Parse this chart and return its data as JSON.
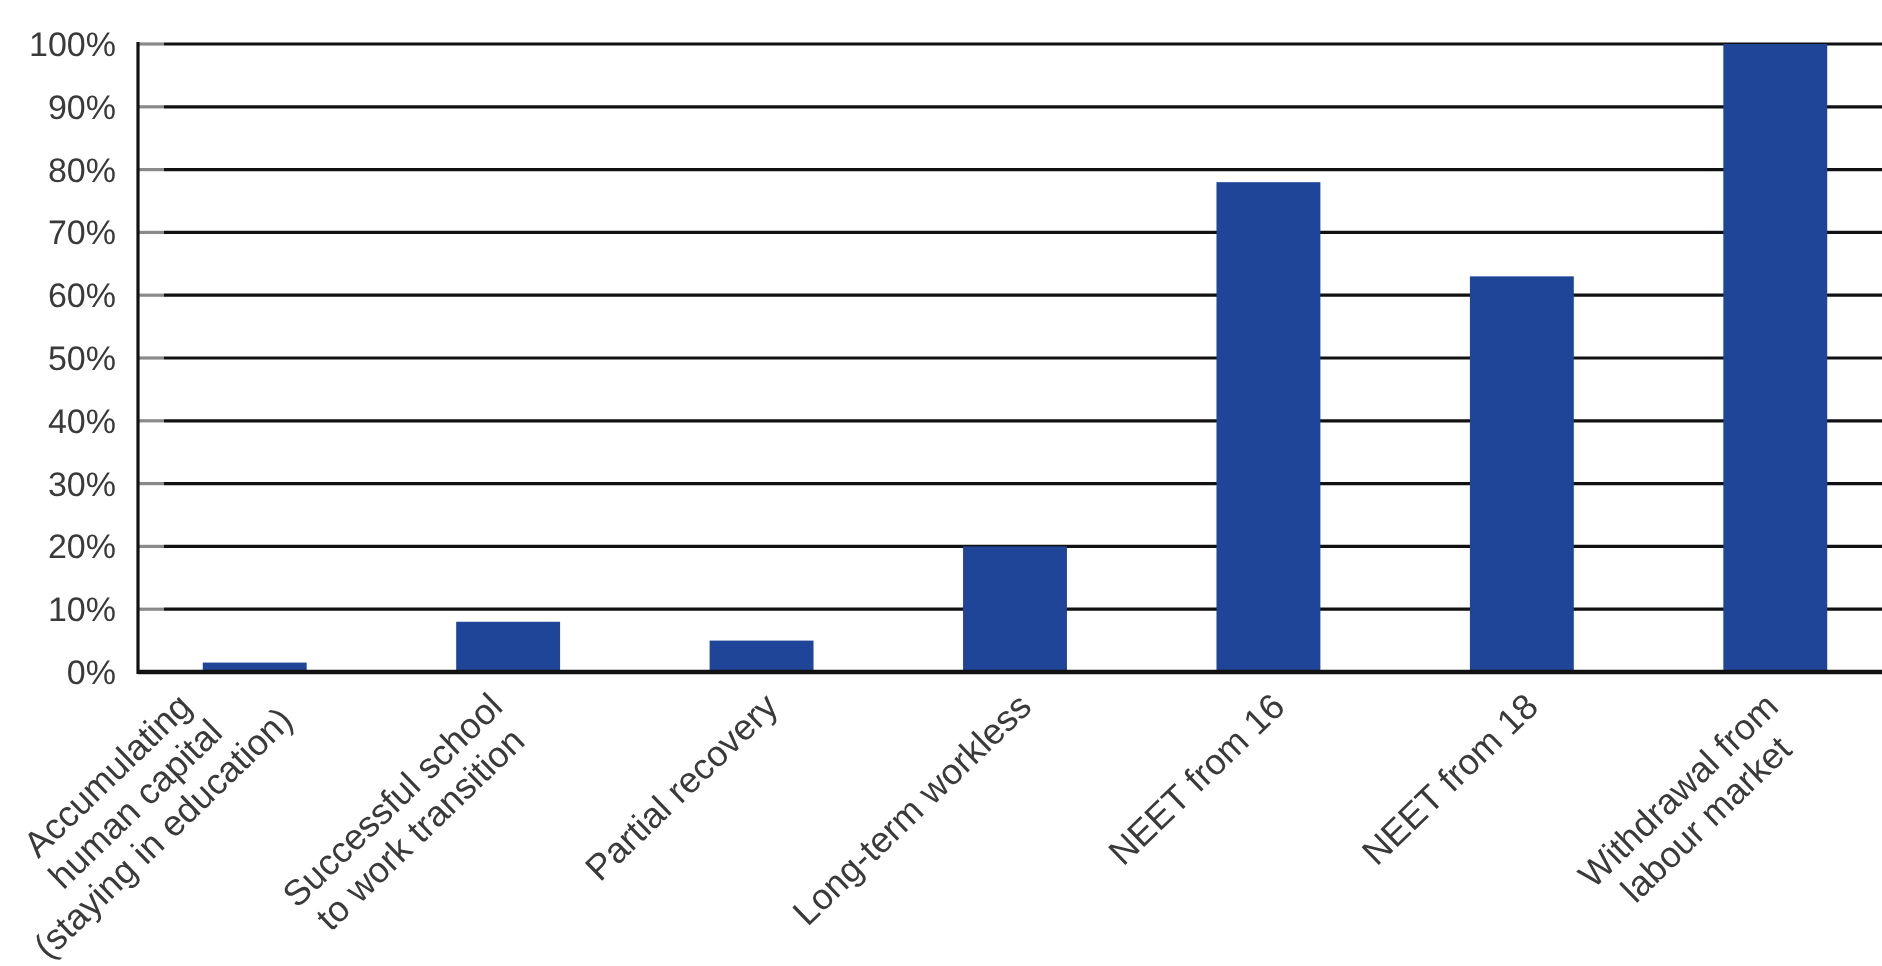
{
  "chart_data": {
    "type": "bar",
    "categories": [
      "Accumulating\nhuman capital\n(staying in education)",
      "Successful school\nto work transition",
      "Partial recovery",
      "Long-term workless",
      "NEET from 16",
      "NEET from 18",
      "Withdrawal from\nlabour market"
    ],
    "values": [
      1.5,
      8,
      5,
      20,
      78,
      63,
      100
    ],
    "color": "#1f4599",
    "ylim": [
      0,
      100
    ],
    "yticks": [
      {
        "value": 0,
        "label": "0%"
      },
      {
        "value": 10,
        "label": "10%"
      },
      {
        "value": 20,
        "label": "20%"
      },
      {
        "value": 30,
        "label": "30%"
      },
      {
        "value": 40,
        "label": "40%"
      },
      {
        "value": 50,
        "label": "50%"
      },
      {
        "value": 60,
        "label": "60%"
      },
      {
        "value": 70,
        "label": "70%"
      },
      {
        "value": 80,
        "label": "80%"
      },
      {
        "value": 90,
        "label": "90%"
      },
      {
        "value": 100,
        "label": "100%"
      }
    ],
    "grid": "y"
  }
}
